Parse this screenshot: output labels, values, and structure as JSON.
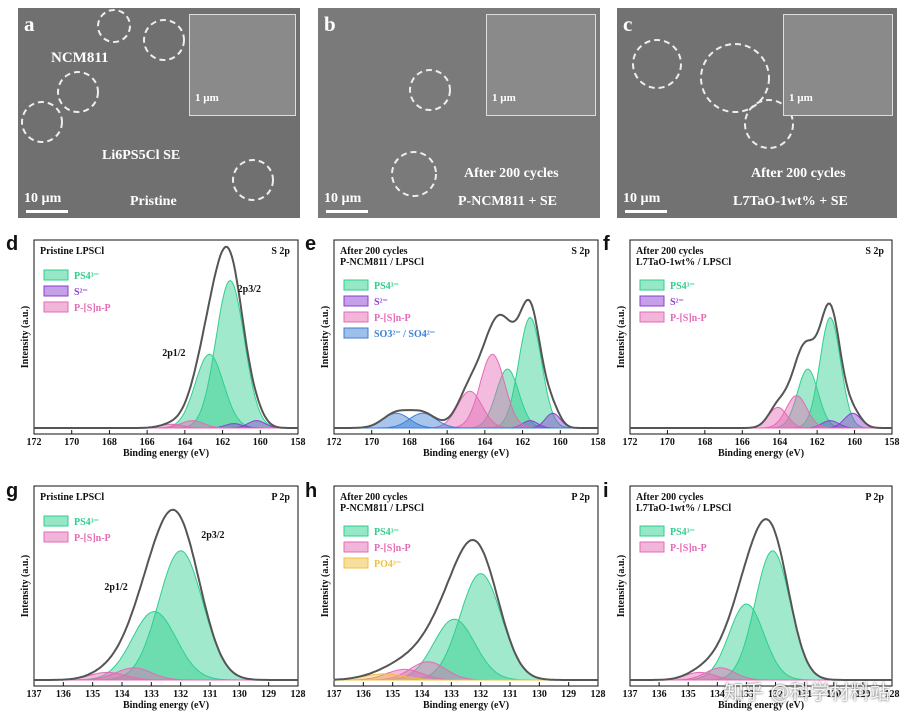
{
  "sem": [
    {
      "letter": "a",
      "labels": [
        "NCM811",
        "Li6PS5Cl  SE",
        "Pristine"
      ],
      "scale": "10 µm",
      "inset_scale": "1 µm"
    },
    {
      "letter": "b",
      "labels": [
        "After 200 cycles",
        "P-NCM811 + SE"
      ],
      "scale": "10 µm",
      "inset_scale": "1 µm"
    },
    {
      "letter": "c",
      "labels": [
        "After 200 cycles",
        "L7TaO-1wt% + SE"
      ],
      "scale": "10 µm",
      "inset_scale": "1 µm"
    }
  ],
  "colors": {
    "ps4": "#2ecf8e",
    "s2": "#8b3fd1",
    "psp": "#e46bb6",
    "so": "#3b7fd6",
    "po4": "#f0c040",
    "env": "#555555"
  },
  "axis": {
    "xlabel": "Binding energy (eV)",
    "ylabel": "Intensity (a.u.)"
  },
  "chart_data": [
    {
      "id": "d",
      "type": "line",
      "title": "Pristine LPSCl",
      "region": "S 2p",
      "xlim": [
        172,
        158
      ],
      "ticks": [
        "172",
        "170",
        "168",
        "166",
        "164",
        "162",
        "160",
        "158"
      ],
      "legend": [
        "PS4³⁻",
        "S²⁻",
        "P-[S]n-P"
      ],
      "annotations": [
        "2p3/2",
        "2p1/2"
      ],
      "series": [
        {
          "name": "PS4³⁻",
          "peaks": [
            [
              161.6,
              1.0,
              0.75
            ],
            [
              162.7,
              0.5,
              0.75
            ]
          ]
        },
        {
          "name": "S²⁻",
          "peaks": [
            [
              160.2,
              0.05,
              0.45
            ],
            [
              161.4,
              0.03,
              0.45
            ]
          ]
        },
        {
          "name": "P-[S]n-P",
          "peaks": [
            [
              163.6,
              0.05,
              0.6
            ],
            [
              164.7,
              0.025,
              0.6
            ]
          ]
        }
      ]
    },
    {
      "id": "e",
      "type": "line",
      "title": "After 200 cycles P-NCM811 / LPSCl",
      "region": "S 2p",
      "xlim": [
        172,
        158
      ],
      "ticks": [
        "172",
        "170",
        "168",
        "166",
        "164",
        "162",
        "160",
        "158"
      ],
      "legend": [
        "PS4³⁻",
        "S²⁻",
        "P-[S]n-P",
        "SO3²⁻ / SO4²⁻"
      ],
      "series": [
        {
          "name": "PS4³⁻",
          "peaks": [
            [
              161.6,
              0.75,
              0.6
            ],
            [
              162.8,
              0.4,
              0.6
            ]
          ]
        },
        {
          "name": "S²⁻",
          "peaks": [
            [
              160.4,
              0.1,
              0.4
            ],
            [
              161.6,
              0.05,
              0.4
            ]
          ]
        },
        {
          "name": "P-[S]n-P",
          "peaks": [
            [
              163.6,
              0.5,
              0.65
            ],
            [
              164.8,
              0.25,
              0.65
            ]
          ]
        },
        {
          "name": "SO3²⁻ / SO4²⁻",
          "peaks": [
            [
              167.3,
              0.1,
              0.7
            ],
            [
              168.7,
              0.1,
              0.7
            ]
          ]
        }
      ]
    },
    {
      "id": "f",
      "type": "line",
      "title": "After 200 cycles L7TaO-1wt% / LPSCl",
      "region": "S 2p",
      "xlim": [
        172,
        158
      ],
      "ticks": [
        "172",
        "170",
        "168",
        "166",
        "164",
        "162",
        "160",
        "158"
      ],
      "legend": [
        "PS4³⁻",
        "S²⁻",
        "P-[S]n-P"
      ],
      "series": [
        {
          "name": "PS4³⁻",
          "peaks": [
            [
              161.3,
              0.75,
              0.55
            ],
            [
              162.5,
              0.4,
              0.55
            ]
          ]
        },
        {
          "name": "S²⁻",
          "peaks": [
            [
              160.1,
              0.1,
              0.45
            ],
            [
              161.3,
              0.05,
              0.45
            ]
          ]
        },
        {
          "name": "P-[S]n-P",
          "peaks": [
            [
              163.1,
              0.22,
              0.55
            ],
            [
              164.1,
              0.14,
              0.5
            ]
          ]
        }
      ]
    },
    {
      "id": "g",
      "type": "line",
      "title": "Pristine LPSCl",
      "region": "P 2p",
      "xlim": [
        137,
        128
      ],
      "ticks": [
        "137",
        "136",
        "135",
        "134",
        "133",
        "132",
        "131",
        "130",
        "129",
        "128"
      ],
      "legend": [
        "PS4³⁻",
        "P-[S]n-P"
      ],
      "annotations": [
        "2p3/2",
        "2p1/2"
      ],
      "series": [
        {
          "name": "PS4³⁻",
          "peaks": [
            [
              132.0,
              0.85,
              0.75
            ],
            [
              132.9,
              0.45,
              0.75
            ]
          ]
        },
        {
          "name": "P-[S]n-P",
          "peaks": [
            [
              133.6,
              0.08,
              0.6
            ],
            [
              134.5,
              0.05,
              0.6
            ]
          ]
        }
      ]
    },
    {
      "id": "h",
      "type": "line",
      "title": "After 200 cycles P-NCM811 / LPSCl",
      "region": "P 2p",
      "xlim": [
        137,
        128
      ],
      "ticks": [
        "137",
        "136",
        "135",
        "134",
        "133",
        "132",
        "131",
        "130",
        "129",
        "128"
      ],
      "legend": [
        "PS4³⁻",
        "P-[S]n-P",
        "PO4³⁻"
      ],
      "series": [
        {
          "name": "PS4³⁻",
          "peaks": [
            [
              132.0,
              0.7,
              0.7
            ],
            [
              132.9,
              0.4,
              0.7
            ]
          ]
        },
        {
          "name": "P-[S]n-P",
          "peaks": [
            [
              133.8,
              0.12,
              0.6
            ],
            [
              134.6,
              0.07,
              0.6
            ]
          ]
        },
        {
          "name": "PO4³⁻",
          "peaks": [
            [
              135.3,
              0.04,
              0.7
            ]
          ]
        }
      ]
    },
    {
      "id": "i",
      "type": "line",
      "title": "After 200 cycles L7TaO-1wt% / LPSCl",
      "region": "P 2p",
      "xlim": [
        137,
        128
      ],
      "ticks": [
        "137",
        "136",
        "135",
        "134",
        "133",
        "132",
        "131",
        "130",
        "129",
        "128"
      ],
      "legend": [
        "PS4³⁻",
        "P-[S]n-P"
      ],
      "series": [
        {
          "name": "PS4³⁻",
          "peaks": [
            [
              132.1,
              0.85,
              0.6
            ],
            [
              133.0,
              0.5,
              0.6
            ]
          ]
        },
        {
          "name": "P-[S]n-P",
          "peaks": [
            [
              133.9,
              0.08,
              0.5
            ],
            [
              134.6,
              0.05,
              0.5
            ]
          ]
        }
      ]
    }
  ],
  "watermark": "知乎 @科学材料站"
}
